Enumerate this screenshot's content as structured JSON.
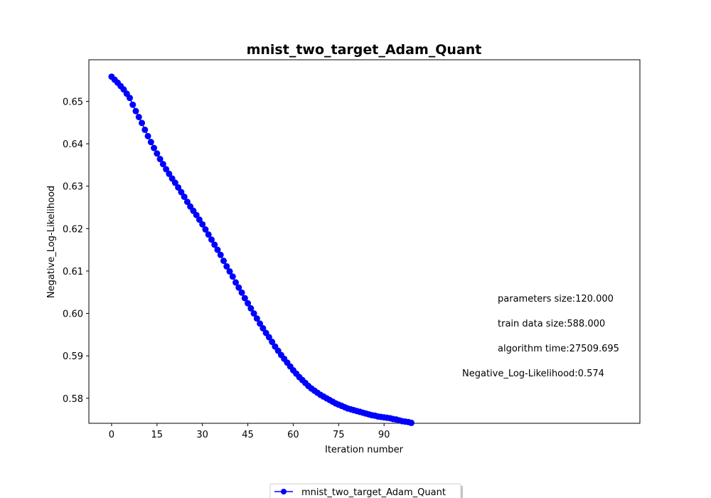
{
  "chart_data": {
    "type": "line",
    "title": "mnist_two_target_Adam_Quant",
    "xlabel": "Iteration number",
    "ylabel": "Negative_Log-Likelihood",
    "xlim": [
      -7.5,
      174.5
    ],
    "ylim": [
      0.5741,
      0.6598
    ],
    "xticks": [
      0,
      15,
      30,
      45,
      60,
      75,
      90
    ],
    "yticks": [
      0.58,
      0.59,
      0.6,
      0.61,
      0.62,
      0.63,
      0.64,
      0.65
    ],
    "ytick_labels": [
      "0.58",
      "0.59",
      "0.60",
      "0.61",
      "0.62",
      "0.63",
      "0.64",
      "0.65"
    ],
    "grid": false,
    "legend_position": "bottom-center",
    "series": [
      {
        "name": "mnist_two_target_Adam_Quant",
        "color": "#0000ff",
        "marker": "circle",
        "x": [
          0,
          1,
          2,
          3,
          4,
          5,
          6,
          7,
          8,
          9,
          10,
          11,
          12,
          13,
          14,
          15,
          16,
          17,
          18,
          19,
          20,
          21,
          22,
          23,
          24,
          25,
          26,
          27,
          28,
          29,
          30,
          31,
          32,
          33,
          34,
          35,
          36,
          37,
          38,
          39,
          40,
          41,
          42,
          43,
          44,
          45,
          46,
          47,
          48,
          49,
          50,
          51,
          52,
          53,
          54,
          55,
          56,
          57,
          58,
          59,
          60,
          61,
          62,
          63,
          64,
          65,
          66,
          67,
          68,
          69,
          70,
          71,
          72,
          73,
          74,
          75,
          76,
          77,
          78,
          79,
          80,
          81,
          82,
          83,
          84,
          85,
          86,
          87,
          88,
          89,
          90,
          91,
          92,
          93,
          94,
          95,
          96,
          97,
          98,
          99
        ],
        "y": [
          0.6558,
          0.6551,
          0.6544,
          0.6536,
          0.6528,
          0.6518,
          0.6508,
          0.6492,
          0.6477,
          0.6463,
          0.6449,
          0.6433,
          0.6418,
          0.6404,
          0.639,
          0.6377,
          0.6364,
          0.6352,
          0.634,
          0.6329,
          0.6318,
          0.6308,
          0.6297,
          0.6286,
          0.6275,
          0.6263,
          0.6252,
          0.6242,
          0.6232,
          0.6221,
          0.621,
          0.6198,
          0.6186,
          0.6174,
          0.6162,
          0.615,
          0.6138,
          0.6124,
          0.6111,
          0.6099,
          0.6087,
          0.6073,
          0.6061,
          0.6049,
          0.6036,
          0.6024,
          0.6012,
          0.6,
          0.5988,
          0.5976,
          0.5965,
          0.5954,
          0.5944,
          0.5933,
          0.5922,
          0.5912,
          0.5902,
          0.5893,
          0.5884,
          0.5875,
          0.5866,
          0.5858,
          0.585,
          0.5843,
          0.5836,
          0.5829,
          0.5823,
          0.5818,
          0.5813,
          0.5808,
          0.5804,
          0.58,
          0.5796,
          0.5792,
          0.5788,
          0.5785,
          0.5782,
          0.5779,
          0.5776,
          0.5774,
          0.5772,
          0.577,
          0.5768,
          0.5766,
          0.5764,
          0.5762,
          0.576,
          0.5759,
          0.5757,
          0.5756,
          0.5755,
          0.5754,
          0.5753,
          0.5751,
          0.575,
          0.5748,
          0.5746,
          0.5745,
          0.5744,
          0.5742
        ]
      }
    ],
    "annotations": [
      "parameters size:120.000",
      "train data size:588.000",
      "algorithm time:27509.695",
      "Negative_Log-Likelihood:0.574"
    ]
  }
}
